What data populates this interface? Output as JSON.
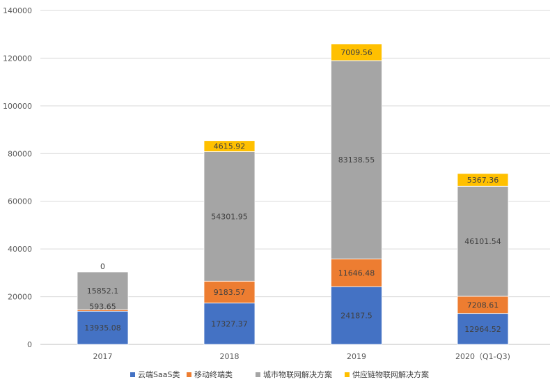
{
  "chart_data": {
    "type": "bar",
    "stacked": true,
    "categories": [
      "2017",
      "2018",
      "2019",
      "2020（Q1-Q3)"
    ],
    "series": [
      {
        "name": "云端SaaS类",
        "color": "#4472C4",
        "values": [
          13935.08,
          17327.37,
          24187.5,
          12964.52
        ],
        "labels": [
          "13935.08",
          "17327.37",
          "24187.5",
          "12964.52"
        ]
      },
      {
        "name": "移动终端类",
        "color": "#ED7D31",
        "values": [
          593.65,
          9183.57,
          11646.48,
          7208.61
        ],
        "labels": [
          "593.65",
          "9183.57",
          "11646.48",
          "7208.61"
        ]
      },
      {
        "name": "城市物联网解决方案",
        "color": "#A5A5A5",
        "values": [
          15852.1,
          54301.95,
          83138.55,
          46101.54
        ],
        "labels": [
          "15852.1",
          "54301.95",
          "83138.55",
          "46101.54"
        ]
      },
      {
        "name": "供应链物联网解决方案",
        "color": "#FFC000",
        "values": [
          0,
          4615.92,
          7009.56,
          5367.36
        ],
        "labels": [
          "0",
          "4615.92",
          "7009.56",
          "5367.36"
        ]
      }
    ],
    "ylim": [
      0,
      140000
    ],
    "yticks": [
      "0",
      "20000",
      "40000",
      "60000",
      "80000",
      "100000",
      "120000",
      "140000"
    ],
    "grid": true,
    "legend_position": "bottom"
  }
}
